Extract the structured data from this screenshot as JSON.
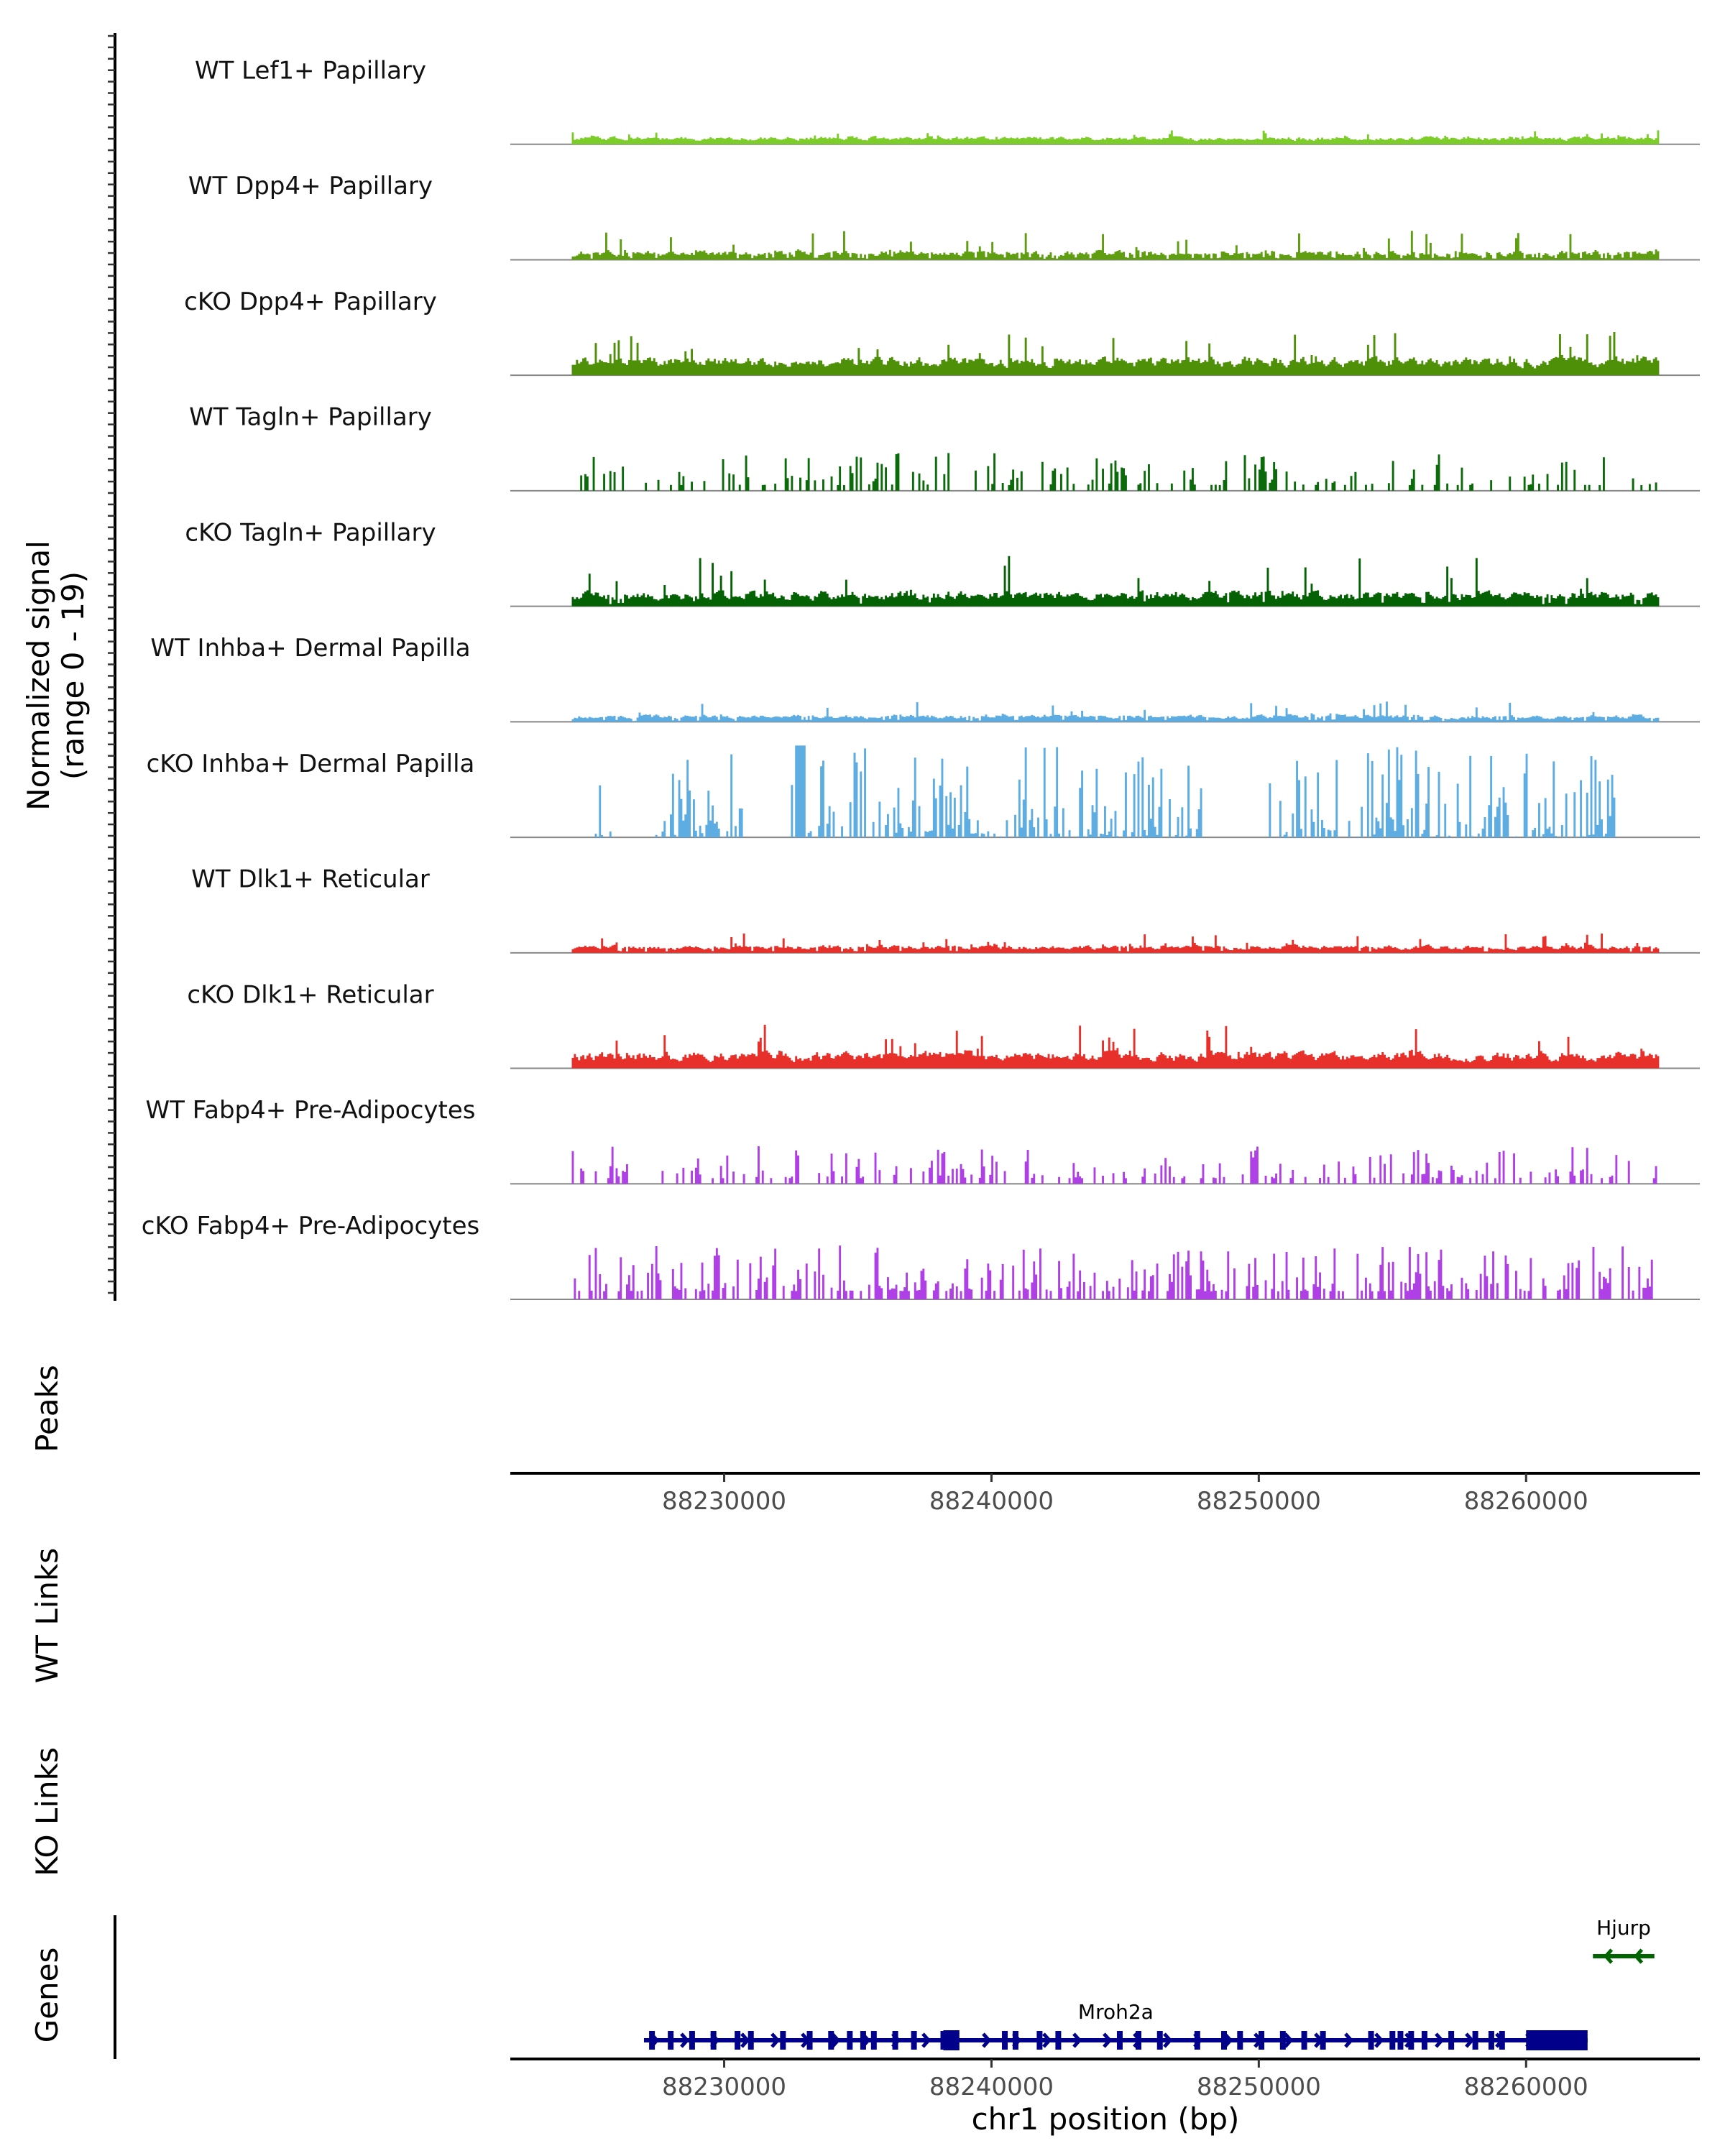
{
  "chart_data": {
    "type": "area",
    "chromosome": "chr1",
    "x_range": [
      88222000,
      88266500
    ],
    "signal_range": [
      0,
      19
    ],
    "signal_axis_label": [
      "Normalized signal",
      "(range 0 - 19)"
    ],
    "tracks": [
      {
        "name": "WT Lef1+ Papillary",
        "color": "#7CCD2A",
        "style": "smooth",
        "base": 0.9,
        "amp": 1.6,
        "density": 1.0,
        "seed": 11
      },
      {
        "name": "WT Dpp4+ Papillary",
        "color": "#5E9E10",
        "style": "smooth",
        "base": 0.6,
        "amp": 5.0,
        "density": 0.85,
        "seed": 23
      },
      {
        "name": "cKO Dpp4+ Papillary",
        "color": "#4E9008",
        "style": "smooth",
        "base": 1.8,
        "amp": 6.0,
        "density": 1.0,
        "seed": 37
      },
      {
        "name": "WT Tagln+ Papillary",
        "color": "#0B6B0B",
        "style": "sparse",
        "base": 0.0,
        "amp": 7.0,
        "density": 0.55,
        "seed": 41
      },
      {
        "name": "cKO Tagln+ Papillary",
        "color": "#046104",
        "style": "smooth",
        "base": 1.0,
        "amp": 8.5,
        "density": 0.95,
        "seed": 53
      },
      {
        "name": "WT Inhba+ Dermal Papilla",
        "color": "#5DADE2",
        "style": "smooth",
        "base": 0.6,
        "amp": 3.0,
        "density": 0.9,
        "seed": 67
      },
      {
        "name": "cKO Inhba+ Dermal Papilla",
        "color": "#5DADE2",
        "style": "spiky",
        "base": 0.0,
        "amp": 17.0,
        "density": 0.7,
        "seed": 71
      },
      {
        "name": "WT Dlk1+ Reticular",
        "color": "#E8302B",
        "style": "smooth",
        "base": 0.7,
        "amp": 2.8,
        "density": 0.95,
        "seed": 83
      },
      {
        "name": "cKO Dlk1+ Reticular",
        "color": "#E8302B",
        "style": "smooth",
        "base": 1.6,
        "amp": 6.0,
        "density": 1.0,
        "seed": 97
      },
      {
        "name": "WT Fabp4+ Pre-Adipocytes",
        "color": "#AF40E6",
        "style": "sparse",
        "base": 0.0,
        "amp": 7.0,
        "density": 0.6,
        "seed": 103
      },
      {
        "name": "cKO Fabp4+ Pre-Adipocytes",
        "color": "#AF40E6",
        "style": "sparse",
        "base": 0.0,
        "amp": 10.0,
        "density": 0.85,
        "seed": 117
      }
    ],
    "panels": [
      {
        "id": "peaks",
        "label": "Peaks"
      },
      {
        "id": "wt_links",
        "label": "WT Links"
      },
      {
        "id": "ko_links",
        "label": "KO Links"
      },
      {
        "id": "genes",
        "label": "Genes"
      }
    ],
    "xticks": [
      88230000,
      88240000,
      88250000,
      88260000
    ],
    "xlabel": "chr1 position (bp)",
    "genes": [
      {
        "name": "Mroh2a",
        "strand": "+",
        "start": 88227000,
        "end": 88262300,
        "thick_start": 88260000,
        "thick_end": 88262300,
        "color": "#00008B",
        "row": 2,
        "exons": [
          88227300,
          88228000,
          88228800,
          88229600,
          88230500,
          88231000,
          88232200,
          88233200,
          88234000,
          88234700,
          88235200,
          88235600,
          88236400,
          88237100,
          88238200,
          88238500,
          88240500,
          88240900,
          88241800,
          88242500,
          88244800,
          88245500,
          88246300,
          88247700,
          88248700,
          88249300,
          88250100,
          88250900,
          88251700,
          88252400,
          88254200,
          88255000,
          88255300,
          88255700,
          88256200,
          88257200,
          88258100,
          88258700,
          88259100
        ]
      },
      {
        "name": "Hjurp",
        "strand": "-",
        "start": 88262500,
        "end": 88264800,
        "color": "#006400",
        "row": 1,
        "exons": []
      }
    ]
  }
}
